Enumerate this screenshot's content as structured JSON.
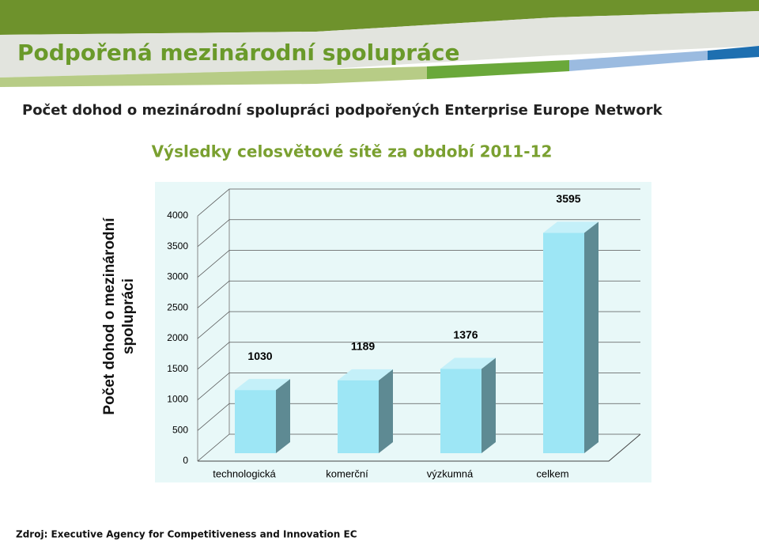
{
  "header": {
    "title": "Podpořená mezinárodní spolupráce"
  },
  "subtitle": "Počet dohod o mezinárodní spolupráci podpořených Enterprise Europe Network",
  "chart_data": {
    "type": "bar3d",
    "title": "Výsledky celosvětové sítě za období 2011-12",
    "ylabel": "Počet dohod o mezinárodní spolupráci",
    "categories": [
      "technologická",
      "komerční",
      "výzkumná",
      "celkem"
    ],
    "values": [
      1030,
      1189,
      1376,
      3595
    ],
    "color": "#9de6f5",
    "ylim": [
      0,
      4000
    ],
    "yticks": [
      0,
      500,
      1000,
      1500,
      2000,
      2500,
      3000,
      3500,
      4000
    ],
    "grid": true
  },
  "source": "Zdroj: Executive Agency for Competitiveness and Innovation EC"
}
